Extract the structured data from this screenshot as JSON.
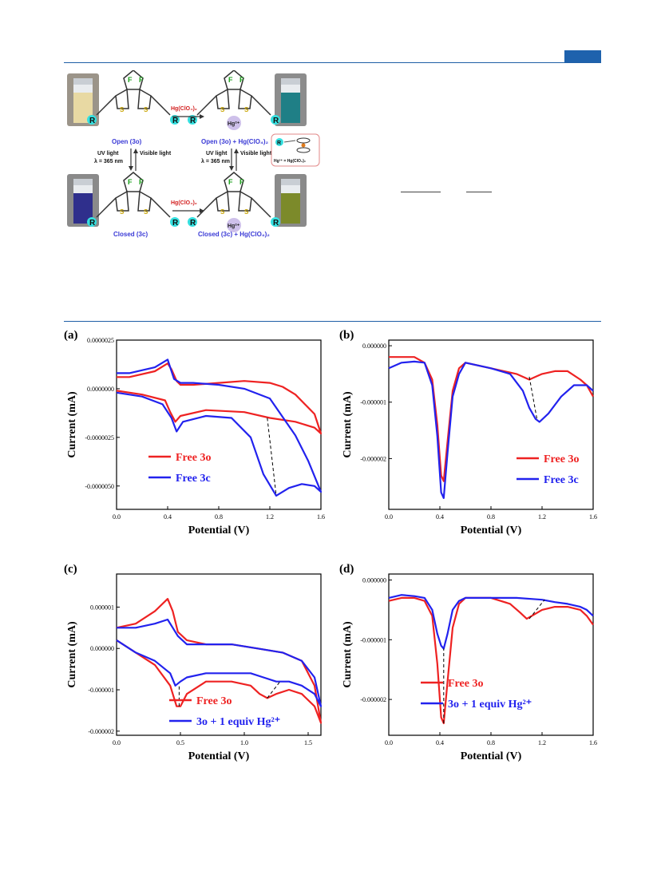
{
  "scheme": {
    "reagent_top": "Hg(ClO₄)₂",
    "reagent_bottom": "Hg(ClO₄)₂",
    "open": "Open (3o)",
    "open_hg": "Open (3o) + Hg(ClO₄)₂",
    "closed": "Closed (3c)",
    "closed_hg": "Closed (3c) + Hg(ClO₄)₂",
    "uv": "UV light",
    "wavelength": "λ = 365 nm",
    "visible": "Visible light",
    "hg_ion": "Hg²⁺",
    "hg_legend": "Hg²⁺ = Hg(ClO₄)₂",
    "r": "R",
    "f": "F",
    "s": "S",
    "vial_colors": {
      "open": "#e8d9a3",
      "open_hg": "#1f7f86",
      "closed": "#2f2f8c",
      "closed_hg": "#7c8a2a"
    },
    "accent_color": "#3a3ad6",
    "reagent_color": "#d21f1f"
  },
  "chart_data": [
    {
      "panel": "(a)",
      "type": "line",
      "xlabel": "Potential (V)",
      "ylabel": "Current (mA)",
      "xlim": [
        0.0,
        1.6
      ],
      "ylim": [
        -6.2e-06,
        2.5e-06
      ],
      "xticks": [
        "0.0",
        "0.4",
        "0.8",
        "1.2",
        "1.6"
      ],
      "yticks": [
        {
          "v": 2.5e-06,
          "label": "0.0000025"
        },
        {
          "v": 0.0,
          "label": "0.0000000"
        },
        {
          "v": -2.5e-06,
          "label": "-0.0000025"
        },
        {
          "v": -5e-06,
          "label": "-0.0000050"
        }
      ],
      "legend_position": "bottom-left",
      "series": [
        {
          "name": "Free 3o",
          "color": "#ee2222",
          "x": [
            0.0,
            0.2,
            0.38,
            0.42,
            0.46,
            0.5,
            0.7,
            1.0,
            1.2,
            1.4,
            1.55,
            1.6,
            1.55,
            1.4,
            1.3,
            1.2,
            1.0,
            0.8,
            0.6,
            0.5,
            0.47,
            0.43,
            0.4,
            0.3,
            0.1,
            0.0
          ],
          "y": [
            -1e-07,
            -3e-07,
            -6e-07,
            -1.2e-06,
            -1.7e-06,
            -1.4e-06,
            -1.1e-06,
            -1.2e-06,
            -1.5e-06,
            -1.7e-06,
            -2e-06,
            -2.3e-06,
            -1.3e-06,
            -3e-07,
            1e-07,
            3e-07,
            4e-07,
            3e-07,
            2e-07,
            2e-07,
            4e-07,
            1e-06,
            1.3e-06,
            9e-07,
            6e-07,
            6e-07
          ]
        },
        {
          "name": "Free 3c",
          "color": "#2222ee",
          "x": [
            0.0,
            0.2,
            0.36,
            0.43,
            0.47,
            0.52,
            0.7,
            0.9,
            1.05,
            1.15,
            1.25,
            1.35,
            1.45,
            1.55,
            1.6,
            1.5,
            1.4,
            1.2,
            1.0,
            0.8,
            0.6,
            0.5,
            0.45,
            0.4,
            0.3,
            0.1,
            0.0
          ],
          "y": [
            -2e-07,
            -4e-07,
            -8e-07,
            -1.5e-06,
            -2.2e-06,
            -1.7e-06,
            -1.4e-06,
            -1.5e-06,
            -2.5e-06,
            -4.4e-06,
            -5.5e-06,
            -5.1e-06,
            -4.9e-06,
            -5e-06,
            -5.3e-06,
            -3.7e-06,
            -2.4e-06,
            -5e-07,
            0.0,
            2e-07,
            3e-07,
            3e-07,
            5e-07,
            1.5e-06,
            1.1e-06,
            8e-07,
            8e-07
          ]
        }
      ],
      "annotation_lines": [
        {
          "x1": 1.18,
          "y1": -1.5e-06,
          "x2": 1.25,
          "y2": -5.5e-06
        }
      ]
    },
    {
      "panel": "(b)",
      "type": "line",
      "xlabel": "Potential (V)",
      "ylabel": "Current (mA)",
      "xlim": [
        0.0,
        1.6
      ],
      "ylim": [
        -2.9e-06,
        1e-07
      ],
      "xticks": [
        "0.0",
        "0.4",
        "0.8",
        "1.2",
        "1.6"
      ],
      "yticks": [
        {
          "v": 0.0,
          "label": "0.000000"
        },
        {
          "v": -1e-06,
          "label": "-0.000001"
        },
        {
          "v": -2e-06,
          "label": "-0.000002"
        }
      ],
      "legend_position": "bottom-right",
      "series": [
        {
          "name": "Free 3o",
          "color": "#ee2222",
          "x": [
            0.0,
            0.1,
            0.2,
            0.28,
            0.34,
            0.38,
            0.41,
            0.43,
            0.46,
            0.5,
            0.55,
            0.6,
            0.8,
            1.0,
            1.1,
            1.15,
            1.2,
            1.3,
            1.4,
            1.5,
            1.55,
            1.6
          ],
          "y": [
            -2e-07,
            -2e-07,
            -2e-07,
            -3e-07,
            -6e-07,
            -1.4e-06,
            -2.3e-06,
            -2.4e-06,
            -1.7e-06,
            -8e-07,
            -4e-07,
            -3e-07,
            -4e-07,
            -5e-07,
            -6e-07,
            -5.5e-07,
            -5e-07,
            -4.5e-07,
            -4.5e-07,
            -6e-07,
            -7e-07,
            -9e-07
          ]
        },
        {
          "name": "Free 3c",
          "color": "#2222ee",
          "x": [
            0.0,
            0.1,
            0.2,
            0.28,
            0.34,
            0.38,
            0.41,
            0.43,
            0.46,
            0.5,
            0.55,
            0.6,
            0.8,
            0.95,
            1.05,
            1.1,
            1.15,
            1.18,
            1.25,
            1.35,
            1.45,
            1.55,
            1.6
          ],
          "y": [
            -4e-07,
            -3e-07,
            -2.8e-07,
            -3e-07,
            -7e-07,
            -1.6e-06,
            -2.6e-06,
            -2.7e-06,
            -1.9e-06,
            -9e-07,
            -5e-07,
            -3e-07,
            -4e-07,
            -5e-07,
            -8e-07,
            -1.1e-06,
            -1.3e-06,
            -1.35e-06,
            -1.2e-06,
            -9e-07,
            -7e-07,
            -7e-07,
            -8e-07
          ]
        }
      ],
      "annotation_lines": [
        {
          "x1": 1.1,
          "y1": -5.5e-07,
          "x2": 1.16,
          "y2": -1.3e-06
        }
      ]
    },
    {
      "panel": "(c)",
      "type": "line",
      "xlabel": "Potential (V)",
      "ylabel": "Current (mA)",
      "xlim": [
        0.0,
        1.6
      ],
      "ylim": [
        -2.1e-06,
        1.8e-06
      ],
      "xticks": [
        "0.0",
        "0.5",
        "1.0",
        "1.5"
      ],
      "yticks": [
        {
          "v": 1e-06,
          "label": "0.000001"
        },
        {
          "v": 0.0,
          "label": "0.000000"
        },
        {
          "v": -1e-06,
          "label": "-0.000001"
        },
        {
          "v": -2e-06,
          "label": "-0.000002"
        }
      ],
      "legend_position": "bottom-center",
      "series": [
        {
          "name": "Free 3o",
          "color": "#ee2222",
          "x": [
            0.0,
            0.15,
            0.3,
            0.42,
            0.47,
            0.5,
            0.55,
            0.7,
            0.9,
            1.05,
            1.12,
            1.18,
            1.25,
            1.35,
            1.45,
            1.55,
            1.6,
            1.55,
            1.45,
            1.3,
            1.1,
            0.9,
            0.7,
            0.55,
            0.48,
            0.44,
            0.4,
            0.3,
            0.15,
            0.0
          ],
          "y": [
            2e-07,
            -1e-07,
            -4e-07,
            -9e-07,
            -1.4e-06,
            -1.4e-06,
            -1.1e-06,
            -8e-07,
            -8e-07,
            -9e-07,
            -1.1e-06,
            -1.2e-06,
            -1.1e-06,
            -1e-06,
            -1.1e-06,
            -1.4e-06,
            -1.8e-06,
            -9e-07,
            -3e-07,
            -1e-07,
            0.0,
            1e-07,
            1e-07,
            2e-07,
            4e-07,
            9e-07,
            1.2e-06,
            9e-07,
            6e-07,
            5e-07
          ]
        },
        {
          "name": "3o + 1 equiv Hg²⁺",
          "color": "#2222ee",
          "x": [
            0.0,
            0.15,
            0.3,
            0.42,
            0.46,
            0.5,
            0.55,
            0.7,
            0.9,
            1.05,
            1.15,
            1.25,
            1.35,
            1.45,
            1.55,
            1.6,
            1.55,
            1.45,
            1.3,
            1.1,
            0.9,
            0.7,
            0.55,
            0.48,
            0.44,
            0.4,
            0.3,
            0.15,
            0.0
          ],
          "y": [
            2e-07,
            -1e-07,
            -3e-07,
            -6e-07,
            -9e-07,
            -8e-07,
            -7e-07,
            -6e-07,
            -6e-07,
            -6e-07,
            -7e-07,
            -8e-07,
            -8e-07,
            -9e-07,
            -1.1e-06,
            -1.4e-06,
            -7e-07,
            -3e-07,
            -1e-07,
            0.0,
            1e-07,
            1e-07,
            1e-07,
            3e-07,
            5e-07,
            7e-07,
            6e-07,
            5e-07,
            5e-07
          ]
        }
      ],
      "annotation_lines": [
        {
          "x1": 0.49,
          "y1": -1.4e-06,
          "x2": 0.49,
          "y2": -9e-07
        },
        {
          "x1": 1.18,
          "y1": -1.2e-06,
          "x2": 1.28,
          "y2": -8e-07
        }
      ]
    },
    {
      "panel": "(d)",
      "type": "line",
      "xlabel": "Potential (V)",
      "ylabel": "Current (mA)",
      "xlim": [
        0.0,
        1.6
      ],
      "ylim": [
        -2.6e-06,
        1e-07
      ],
      "xticks": [
        "0.0",
        "0.4",
        "0.8",
        "1.2",
        "1.6"
      ],
      "yticks": [
        {
          "v": 0.0,
          "label": "0.000000"
        },
        {
          "v": -1e-06,
          "label": "-0.000001"
        },
        {
          "v": -2e-06,
          "label": "-0.000002"
        }
      ],
      "legend_position": "bottom-left",
      "series": [
        {
          "name": "Free 3o",
          "color": "#ee2222",
          "x": [
            0.0,
            0.1,
            0.2,
            0.28,
            0.34,
            0.38,
            0.41,
            0.43,
            0.46,
            0.5,
            0.55,
            0.6,
            0.8,
            0.95,
            1.03,
            1.08,
            1.12,
            1.2,
            1.3,
            1.4,
            1.5,
            1.55,
            1.6
          ],
          "y": [
            -3.5e-07,
            -3e-07,
            -3e-07,
            -3.5e-07,
            -6e-07,
            -1.4e-06,
            -2.3e-06,
            -2.4e-06,
            -1.7e-06,
            -8e-07,
            -4e-07,
            -3e-07,
            -3e-07,
            -4e-07,
            -5.5e-07,
            -6.5e-07,
            -6e-07,
            -5e-07,
            -4.5e-07,
            -4.5e-07,
            -5e-07,
            -6e-07,
            -7.5e-07
          ]
        },
        {
          "name": "3o + 1 equiv Hg²⁺",
          "color": "#2222ee",
          "x": [
            0.0,
            0.1,
            0.2,
            0.28,
            0.34,
            0.38,
            0.41,
            0.43,
            0.46,
            0.5,
            0.55,
            0.6,
            0.8,
            1.0,
            1.2,
            1.3,
            1.4,
            1.5,
            1.55,
            1.6
          ],
          "y": [
            -3e-07,
            -2.5e-07,
            -2.7e-07,
            -3e-07,
            -5e-07,
            -9e-07,
            -1.1e-06,
            -1.15e-06,
            -9e-07,
            -5e-07,
            -3.5e-07,
            -3e-07,
            -3e-07,
            -3e-07,
            -3.3e-07,
            -3.7e-07,
            -4e-07,
            -4.5e-07,
            -5e-07,
            -6e-07
          ]
        }
      ],
      "annotation_lines": [
        {
          "x1": 0.43,
          "y1": -2.4e-06,
          "x2": 0.43,
          "y2": -1.15e-06
        },
        {
          "x1": 1.1,
          "y1": -6.5e-07,
          "x2": 1.22,
          "y2": -3.3e-07
        }
      ]
    }
  ]
}
